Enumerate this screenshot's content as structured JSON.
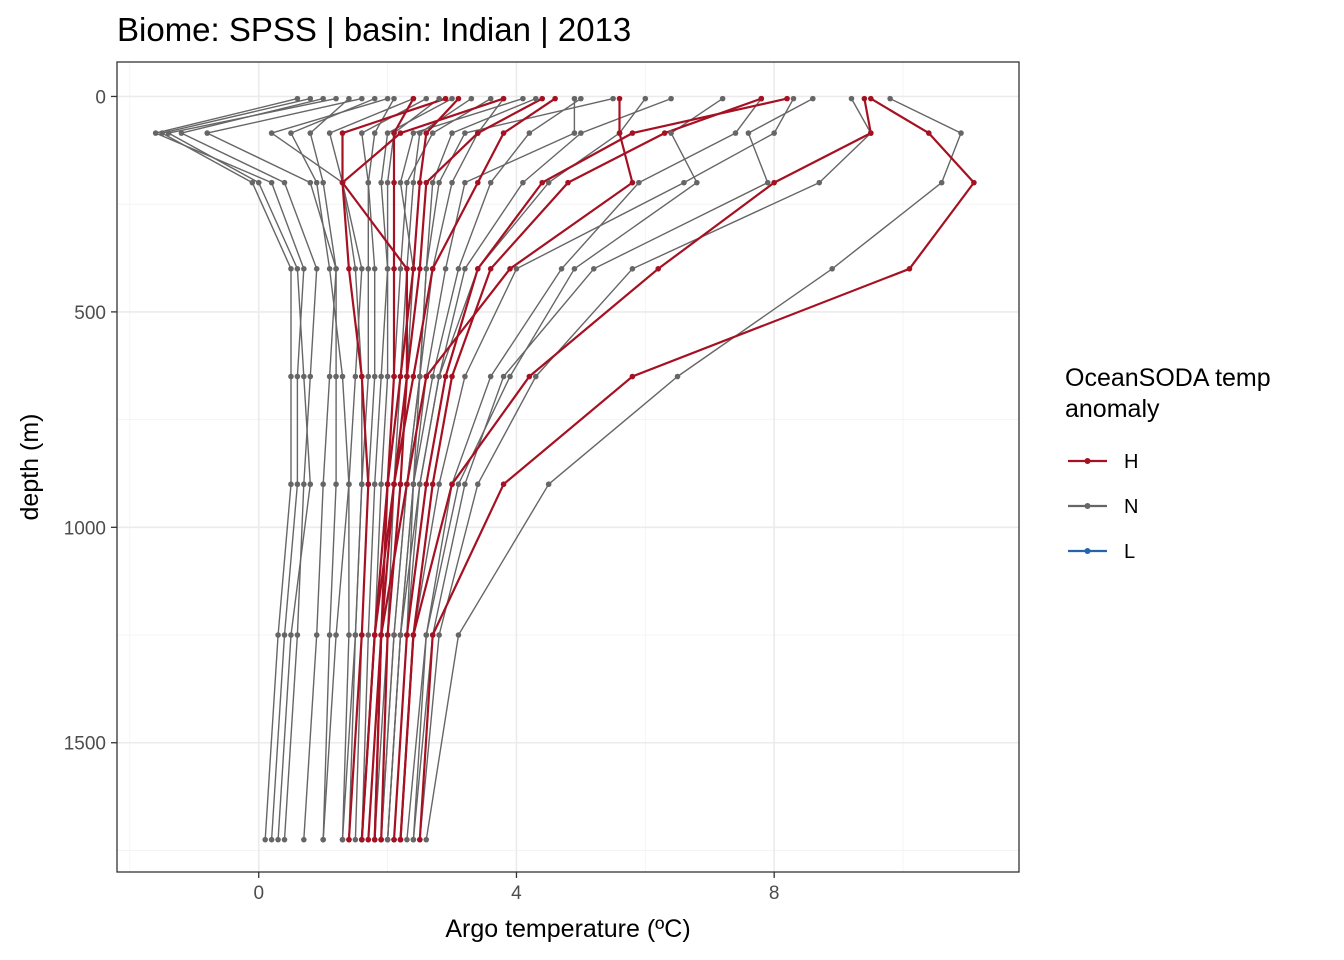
{
  "chart_data": {
    "type": "line",
    "title": "Biome: SPSS | basin: Indian  |  2013",
    "xlabel": "Argo temperature (ºC)",
    "ylabel": "depth (m)",
    "xlim": [
      -2.2,
      11.8
    ],
    "ylim": [
      1800,
      -80
    ],
    "x_ticks": [
      0,
      4,
      8
    ],
    "x_tick_labels": [
      "0",
      "4",
      "8"
    ],
    "y_ticks": [
      0,
      500,
      1000,
      1500
    ],
    "y_tick_labels": [
      "0",
      "500",
      "1000",
      "1500"
    ],
    "y_reversed": true,
    "grid": true,
    "depth_levels": [
      5,
      85,
      200,
      400,
      650,
      900,
      1250,
      1725
    ],
    "legend": {
      "title_line1": "OceanSODA temp",
      "title_line2": "anomaly",
      "position": "right",
      "entries": [
        {
          "key": "H",
          "label": "H",
          "color": "#a51122"
        },
        {
          "key": "N",
          "label": "N",
          "color": "#666666"
        },
        {
          "key": "L",
          "label": "L",
          "color": "#2166ac"
        }
      ]
    },
    "series": [
      {
        "group": "H",
        "values": [
          9.5,
          10.4,
          11.1,
          10.1,
          5.8,
          3.8,
          2.7,
          2.5
        ]
      },
      {
        "group": "H",
        "values": [
          9.4,
          9.5,
          8.0,
          6.2,
          4.2,
          3.0,
          2.4,
          2.2
        ]
      },
      {
        "group": "H",
        "values": [
          8.2,
          5.8,
          4.4,
          3.4,
          2.9,
          2.6,
          2.3,
          2.1
        ]
      },
      {
        "group": "H",
        "values": [
          7.8,
          6.3,
          4.8,
          3.6,
          3.0,
          2.7,
          2.4,
          2.2
        ]
      },
      {
        "group": "H",
        "values": [
          5.6,
          5.6,
          5.8,
          3.9,
          2.6,
          2.3,
          1.9,
          1.7
        ]
      },
      {
        "group": "H",
        "values": [
          4.6,
          3.8,
          3.4,
          2.7,
          2.4,
          2.1,
          1.8,
          1.6
        ]
      },
      {
        "group": "H",
        "values": [
          4.4,
          3.4,
          2.6,
          2.5,
          2.3,
          2.1,
          1.9,
          1.8
        ]
      },
      {
        "group": "H",
        "values": [
          3.8,
          2.2,
          1.3,
          2.3,
          2.3,
          2.2,
          2.0,
          1.9
        ]
      },
      {
        "group": "H",
        "values": [
          2.9,
          1.3,
          1.3,
          1.4,
          1.6,
          1.7,
          1.6,
          1.4
        ]
      },
      {
        "group": "H",
        "values": [
          2.4,
          2.1,
          2.1,
          2.1,
          2.1,
          2.0,
          1.9,
          1.8
        ]
      },
      {
        "group": "H",
        "values": [
          3.1,
          2.6,
          2.5,
          2.4,
          2.2,
          2.0,
          1.8,
          1.6
        ]
      },
      {
        "group": "N",
        "values": [
          9.8,
          10.9,
          10.6,
          8.9,
          6.5,
          4.5,
          3.1,
          2.6
        ]
      },
      {
        "group": "N",
        "values": [
          9.2,
          9.5,
          8.7,
          5.8,
          4.3,
          3.4,
          2.8,
          2.5
        ]
      },
      {
        "group": "N",
        "values": [
          8.6,
          7.6,
          7.9,
          5.2,
          3.8,
          3.2,
          2.7,
          2.4
        ]
      },
      {
        "group": "N",
        "values": [
          7.8,
          7.4,
          5.9,
          4.7,
          3.6,
          3.0,
          2.6,
          2.3
        ]
      },
      {
        "group": "N",
        "values": [
          7.2,
          6.4,
          6.8,
          4.9,
          3.9,
          3.1,
          2.6,
          2.4
        ]
      },
      {
        "group": "N",
        "values": [
          6.4,
          5.0,
          4.1,
          3.2,
          2.8,
          2.5,
          2.2,
          2.0
        ]
      },
      {
        "group": "N",
        "values": [
          5.5,
          3.2,
          2.8,
          2.6,
          2.5,
          2.3,
          2.1,
          1.9
        ]
      },
      {
        "group": "N",
        "values": [
          5.0,
          4.2,
          3.6,
          3.1,
          2.7,
          2.4,
          2.2,
          2.0
        ]
      },
      {
        "group": "N",
        "values": [
          4.9,
          4.9,
          3.2,
          2.9,
          2.6,
          2.4,
          2.2,
          2.0
        ]
      },
      {
        "group": "N",
        "values": [
          4.1,
          2.4,
          2.2,
          2.4,
          2.3,
          2.2,
          2.0,
          1.8
        ]
      },
      {
        "group": "N",
        "values": [
          3.6,
          2.7,
          2.3,
          2.2,
          2.1,
          2.0,
          1.9,
          1.7
        ]
      },
      {
        "group": "N",
        "values": [
          3.0,
          2.0,
          1.9,
          2.0,
          2.0,
          1.9,
          1.8,
          1.6
        ]
      },
      {
        "group": "N",
        "values": [
          2.4,
          1.1,
          1.3,
          1.5,
          1.6,
          1.6,
          1.5,
          1.4
        ]
      },
      {
        "group": "N",
        "values": [
          1.8,
          0.5,
          0.9,
          1.1,
          1.3,
          1.4,
          1.4,
          1.3
        ]
      },
      {
        "group": "N",
        "values": [
          1.2,
          -1.4,
          0.0,
          0.6,
          0.7,
          0.8,
          0.5,
          0.3
        ]
      },
      {
        "group": "N",
        "values": [
          0.8,
          -1.5,
          -0.1,
          0.5,
          0.5,
          0.5,
          0.3,
          0.1
        ]
      },
      {
        "group": "N",
        "values": [
          1.0,
          -1.2,
          0.4,
          0.9,
          0.8,
          0.7,
          0.6,
          0.4
        ]
      },
      {
        "group": "N",
        "values": [
          1.6,
          -0.8,
          0.8,
          1.2,
          1.1,
          1.0,
          0.9,
          0.7
        ]
      },
      {
        "group": "N",
        "values": [
          2.0,
          0.2,
          1.3,
          1.6,
          1.5,
          1.4,
          1.2,
          1.0
        ]
      },
      {
        "group": "N",
        "values": [
          2.6,
          1.6,
          1.7,
          1.8,
          1.8,
          1.7,
          1.6,
          1.5
        ]
      },
      {
        "group": "N",
        "values": [
          3.3,
          2.5,
          2.4,
          2.3,
          2.2,
          2.1,
          2.0,
          1.9
        ]
      },
      {
        "group": "N",
        "values": [
          4.3,
          3.0,
          2.7,
          2.6,
          2.5,
          2.4,
          2.3,
          2.1
        ]
      },
      {
        "group": "N",
        "values": [
          2.1,
          1.8,
          1.7,
          1.7,
          1.7,
          1.6,
          1.5,
          1.3
        ]
      },
      {
        "group": "N",
        "values": [
          6.0,
          5.6,
          4.5,
          3.4,
          2.8,
          2.5,
          2.3,
          2.1
        ]
      },
      {
        "group": "N",
        "values": [
          1.4,
          0.8,
          1.0,
          1.2,
          1.2,
          1.2,
          1.1,
          1.0
        ]
      },
      {
        "group": "N",
        "values": [
          3.8,
          3.4,
          3.0,
          2.7,
          2.5,
          2.3,
          2.1,
          1.9
        ]
      },
      {
        "group": "N",
        "values": [
          8.3,
          8.0,
          6.6,
          4.0,
          3.2,
          2.8,
          2.4,
          2.2
        ]
      },
      {
        "group": "N",
        "values": [
          2.8,
          2.1,
          2.0,
          2.0,
          1.9,
          1.8,
          1.7,
          1.6
        ]
      },
      {
        "group": "N",
        "values": [
          0.6,
          -1.6,
          0.2,
          0.7,
          0.6,
          0.6,
          0.4,
          0.2
        ]
      }
    ]
  }
}
